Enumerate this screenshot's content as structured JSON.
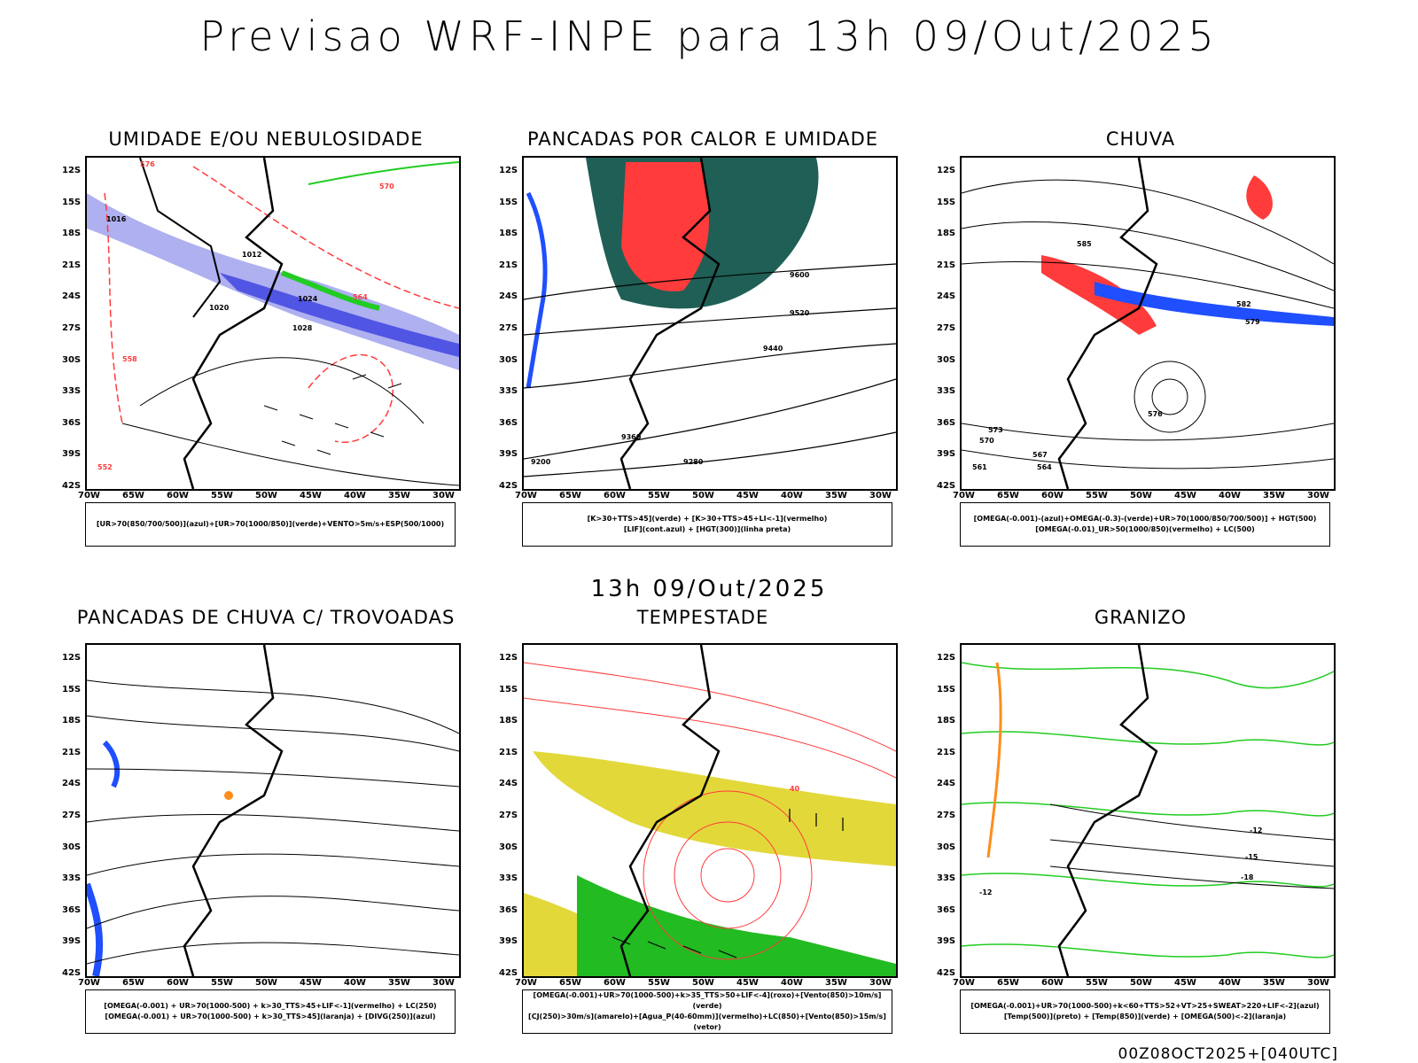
{
  "header": {
    "title": "Previsao WRF-INPE  para 13h 09/Out/2025",
    "mid_time": "13h 09/Out/2025",
    "footer": "00Z08OCT2025+[040UTC]"
  },
  "axes": {
    "lat_labels": [
      "12S",
      "15S",
      "18S",
      "21S",
      "24S",
      "27S",
      "30S",
      "33S",
      "36S",
      "39S",
      "42S"
    ],
    "lon_labels": [
      "70W",
      "65W",
      "60W",
      "55W",
      "50W",
      "45W",
      "40W",
      "35W",
      "30W"
    ]
  },
  "panels": [
    {
      "title": "UMIDADE E/OU NEBULOSIDADE",
      "legend_lines": [
        "[UR>70(850/700/500)](azul)+[UR>70(1000/850)](verde)+VENTO>5m/s+ESP(500/1000)"
      ],
      "contour_labels": [
        "1012",
        "1016",
        "1020",
        "1024",
        "1028",
        "576",
        "570",
        "564",
        "558",
        "552"
      ]
    },
    {
      "title": "PANCADAS POR CALOR E UMIDADE",
      "legend_lines": [
        "[K>30+TTS>45](verde) + [K>30+TTS>45+LI<-1](vermelho)",
        "[LIF](cont.azul) + [HGT(300)](linha preta)"
      ],
      "contour_labels": [
        "9600",
        "9520",
        "9440",
        "9360",
        "9280",
        "9200"
      ]
    },
    {
      "title": "CHUVA",
      "legend_lines": [
        "[OMEGA(-0.001)-(azul)+OMEGA(-0.3)-(verde)+UR>70(1000/850/700/500)] + HGT(500)",
        "[OMEGA(-0.01)_UR>50(1000/850)(vermelho) + LC(500)"
      ],
      "contour_labels": [
        "585",
        "582",
        "579",
        "576",
        "573",
        "570",
        "567",
        "564",
        "561"
      ]
    },
    {
      "title": "PANCADAS DE CHUVA C/ TROVOADAS",
      "legend_lines": [
        "[OMEGA(-0.001) + UR>70(1000-500) + k>30_TTS>45+LIF<-1](vermelho) + LC(250)",
        "[OMEGA(-0.001) + UR>70(1000-500) + k>30_TTS>45](laranja) + [DIVG(250)](azul)"
      ],
      "contour_labels": []
    },
    {
      "title": "TEMPESTADE",
      "legend_lines": [
        "[OMEGA(-0.001)+UR>70(1000-500)+k>35_TTS>50+LIF<-4](roxo)+[Vento(850)>10m/s](verde)",
        "[CJ(250)>30m/s](amarelo)+[Agua_P(40-60mm)](vermelho)+LC(850)+[Vento(850)>15m/s](vetor)"
      ],
      "contour_labels": [
        "40"
      ]
    },
    {
      "title": "GRANIZO",
      "legend_lines": [
        "[OMEGA(-0.001)+UR>70(1000-500)+k<60+TTS>52+VT>25+SWEAT>220+LIF<-2](azul)",
        "[Temp(500)](preto) + [Temp(850)](verde) + [OMEGA(500)<-2](laranja)"
      ],
      "contour_labels": [
        "-12",
        "-15",
        "-18"
      ]
    }
  ],
  "colors": {
    "accent_red": "#ff3b3b",
    "accent_blue": "#1f4fff",
    "accent_green": "#22cc22",
    "accent_darkgreen": "#1f5f55",
    "accent_lavender": "#aeb0f0",
    "accent_yellow": "#e2d83a",
    "accent_orange": "#ff8c1a"
  }
}
